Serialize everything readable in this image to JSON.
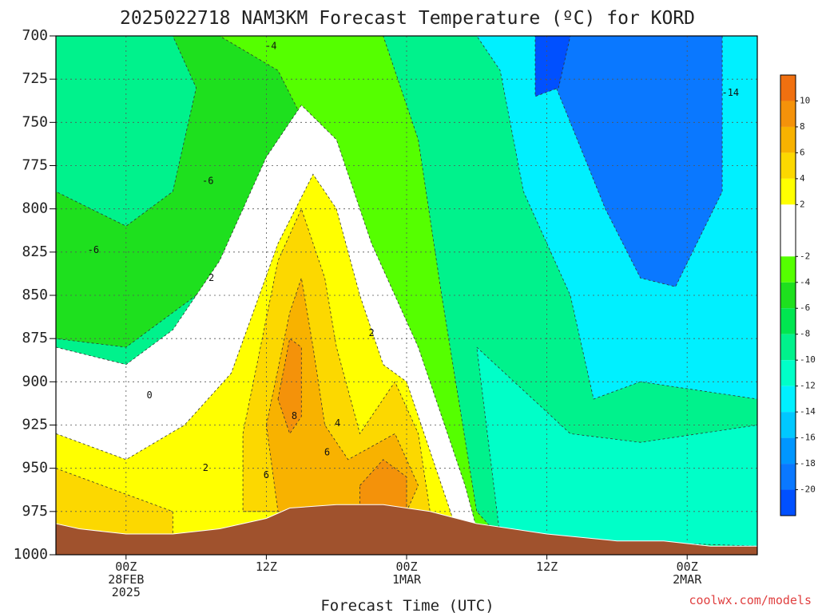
{
  "chart_data": {
    "type": "heatmap",
    "title": "2025022718 NAM3KM Forecast Temperature (ºC) for KORD",
    "xlabel": "Forecast Time (UTC)",
    "ylabel": "",
    "credit": "coolwx.com/models",
    "x_unit": "forecast hour",
    "xlim": [
      0,
      60
    ],
    "y_unit": "hPa",
    "ylim": [
      1000,
      700
    ],
    "y_ticks": [
      700,
      725,
      750,
      775,
      800,
      825,
      850,
      875,
      900,
      925,
      950,
      975,
      1000
    ],
    "x_ticks": [
      {
        "hour": 6,
        "lines": [
          "00Z",
          "28FEB",
          "2025"
        ]
      },
      {
        "hour": 18,
        "lines": [
          "12Z"
        ]
      },
      {
        "hour": 30,
        "lines": [
          "00Z",
          "1MAR"
        ]
      },
      {
        "hour": 42,
        "lines": [
          "12Z"
        ]
      },
      {
        "hour": 54,
        "lines": [
          "00Z",
          "2MAR"
        ]
      }
    ],
    "grid": true,
    "colorbar": {
      "ticks": [
        "10",
        "8",
        "6",
        "4",
        "2",
        "-2",
        "-4",
        "-6",
        "-8",
        "-10",
        "-12",
        "-14",
        "-16",
        "-18",
        "-20"
      ],
      "bins": [
        {
          "lo": 10,
          "hi": 12,
          "color": "#f07010"
        },
        {
          "lo": 8,
          "hi": 10,
          "color": "#f4920a"
        },
        {
          "lo": 6,
          "hi": 8,
          "color": "#f8b200"
        },
        {
          "lo": 4,
          "hi": 6,
          "color": "#fcd800"
        },
        {
          "lo": 2,
          "hi": 4,
          "color": "#ffff00"
        },
        {
          "lo": -2,
          "hi": 2,
          "color": "#ffffff"
        },
        {
          "lo": -4,
          "hi": -2,
          "color": "#55ff00"
        },
        {
          "lo": -6,
          "hi": -4,
          "color": "#1ee01e"
        },
        {
          "lo": -8,
          "hi": -6,
          "color": "#00e650"
        },
        {
          "lo": -10,
          "hi": -8,
          "color": "#00f28c"
        },
        {
          "lo": -12,
          "hi": -10,
          "color": "#00ffc8"
        },
        {
          "lo": -14,
          "hi": -12,
          "color": "#00f0ff"
        },
        {
          "lo": -16,
          "hi": -14,
          "color": "#00c8ff"
        },
        {
          "lo": -18,
          "hi": -16,
          "color": "#0096ff"
        },
        {
          "lo": -20,
          "hi": -18,
          "color": "#0a78ff"
        },
        {
          "lo": -22,
          "hi": -20,
          "color": "#0050ff"
        }
      ]
    },
    "terrain_color": "#a0522d",
    "surface_pressure": [
      {
        "hour": 0,
        "p": 982
      },
      {
        "hour": 2,
        "p": 985
      },
      {
        "hour": 6,
        "p": 988
      },
      {
        "hour": 10,
        "p": 988
      },
      {
        "hour": 14,
        "p": 985
      },
      {
        "hour": 18,
        "p": 979
      },
      {
        "hour": 20,
        "p": 973
      },
      {
        "hour": 24,
        "p": 971
      },
      {
        "hour": 28,
        "p": 971
      },
      {
        "hour": 32,
        "p": 975
      },
      {
        "hour": 36,
        "p": 982
      },
      {
        "hour": 42,
        "p": 988
      },
      {
        "hour": 48,
        "p": 992
      },
      {
        "hour": 52,
        "p": 992
      },
      {
        "hour": 56,
        "p": 995
      },
      {
        "hour": 60,
        "p": 995
      }
    ],
    "regions": [
      {
        "label": "-2 to -6",
        "color": "#1ee01e",
        "poly": [
          [
            0,
            700
          ],
          [
            21,
            700
          ],
          [
            21,
            740
          ],
          [
            18,
            800
          ],
          [
            14,
            840
          ],
          [
            10,
            860
          ],
          [
            6,
            880
          ],
          [
            0,
            875
          ]
        ]
      },
      {
        "label": "-2 to -4",
        "color": "#55ff00",
        "poly": [
          [
            14,
            700
          ],
          [
            28,
            700
          ],
          [
            31,
            760
          ],
          [
            33,
            850
          ],
          [
            36,
            975
          ],
          [
            38,
            990
          ],
          [
            30,
            990
          ],
          [
            26,
            860
          ],
          [
            22,
            760
          ],
          [
            19,
            720
          ]
        ]
      },
      {
        "label": "-6 to -10",
        "color": "#00f28c",
        "poly": [
          [
            0,
            700
          ],
          [
            10,
            700
          ],
          [
            12,
            730
          ],
          [
            10,
            790
          ],
          [
            6,
            810
          ],
          [
            3,
            800
          ],
          [
            0,
            790
          ]
        ]
      },
      {
        "label": "-12 to -16",
        "color": "#00f0ff",
        "poly": [
          [
            36,
            700
          ],
          [
            60,
            700
          ],
          [
            60,
            910
          ],
          [
            50,
            900
          ],
          [
            46,
            910
          ],
          [
            44,
            850
          ],
          [
            40,
            790
          ],
          [
            38,
            720
          ]
        ]
      },
      {
        "label": "-16 to -20",
        "color": "#0a78ff",
        "poly": [
          [
            41,
            700
          ],
          [
            57,
            700
          ],
          [
            57,
            790
          ],
          [
            53,
            845
          ],
          [
            50,
            840
          ],
          [
            47,
            800
          ],
          [
            44,
            750
          ]
        ]
      },
      {
        "label": "-20 to -22",
        "color": "#0050ff",
        "poly": [
          [
            41,
            700
          ],
          [
            44,
            700
          ],
          [
            43,
            730
          ],
          [
            41,
            735
          ]
        ]
      },
      {
        "label": "-10 to -12",
        "color": "#00ffc8",
        "poly": [
          [
            36,
            880
          ],
          [
            44,
            930
          ],
          [
            50,
            935
          ],
          [
            60,
            925
          ],
          [
            60,
            995
          ],
          [
            38,
            990
          ]
        ]
      },
      {
        "label": "-2 to 2",
        "color": "#ffffff",
        "poly": [
          [
            0,
            880
          ],
          [
            6,
            890
          ],
          [
            10,
            870
          ],
          [
            14,
            830
          ],
          [
            18,
            770
          ],
          [
            21,
            740
          ],
          [
            24,
            760
          ],
          [
            27,
            820
          ],
          [
            31,
            880
          ],
          [
            35,
            960
          ],
          [
            36,
            985
          ],
          [
            0,
            990
          ]
        ]
      },
      {
        "label": "2 to 4",
        "color": "#ffff00",
        "poly": [
          [
            0,
            930
          ],
          [
            6,
            945
          ],
          [
            11,
            925
          ],
          [
            15,
            895
          ],
          [
            19,
            820
          ],
          [
            22,
            780
          ],
          [
            24,
            800
          ],
          [
            26,
            850
          ],
          [
            28,
            890
          ],
          [
            30,
            900
          ],
          [
            32,
            940
          ],
          [
            34,
            980
          ],
          [
            8,
            990
          ],
          [
            0,
            985
          ]
        ]
      },
      {
        "label": "4 to 6",
        "color": "#fcd800",
        "poly": [
          [
            0,
            950
          ],
          [
            6,
            965
          ],
          [
            10,
            975
          ],
          [
            10,
            990
          ],
          [
            0,
            985
          ]
        ]
      },
      {
        "label": "4 to 6 b",
        "color": "#fcd800",
        "poly": [
          [
            16,
            930
          ],
          [
            19,
            830
          ],
          [
            21,
            800
          ],
          [
            23,
            840
          ],
          [
            24,
            880
          ],
          [
            26,
            930
          ],
          [
            29,
            900
          ],
          [
            31,
            930
          ],
          [
            32,
            975
          ],
          [
            16,
            975
          ]
        ]
      },
      {
        "label": "6 to 8",
        "color": "#f8b200",
        "poly": [
          [
            18,
            925
          ],
          [
            20,
            860
          ],
          [
            21,
            840
          ],
          [
            22,
            880
          ],
          [
            23,
            925
          ],
          [
            25,
            945
          ],
          [
            29,
            930
          ],
          [
            31,
            960
          ],
          [
            30,
            975
          ],
          [
            19,
            975
          ]
        ]
      },
      {
        "label": "8 to 10",
        "color": "#f4920a",
        "poly": [
          [
            19,
            910
          ],
          [
            20,
            875
          ],
          [
            21,
            880
          ],
          [
            21,
            920
          ],
          [
            20,
            930
          ]
        ]
      },
      {
        "label": "8 to 10 b",
        "color": "#f4920a",
        "poly": [
          [
            26,
            960
          ],
          [
            28,
            945
          ],
          [
            30,
            955
          ],
          [
            30,
            975
          ],
          [
            26,
            975
          ]
        ]
      }
    ],
    "contour_labels": [
      {
        "text": "-4",
        "hour": 18.4,
        "p": 706
      },
      {
        "text": "-6",
        "hour": 13,
        "p": 784
      },
      {
        "text": "-6",
        "hour": 3.2,
        "p": 824
      },
      {
        "text": "-14",
        "hour": 57.7,
        "p": 733
      },
      {
        "text": "2",
        "hour": 13.3,
        "p": 840
      },
      {
        "text": "0",
        "hour": 8,
        "p": 908
      },
      {
        "text": "2",
        "hour": 27,
        "p": 872
      },
      {
        "text": "8",
        "hour": 20.4,
        "p": 920
      },
      {
        "text": "4",
        "hour": 24.1,
        "p": 924
      },
      {
        "text": "6",
        "hour": 23.2,
        "p": 941
      },
      {
        "text": "2",
        "hour": 12.8,
        "p": 950
      },
      {
        "text": "6",
        "hour": 18,
        "p": 954
      }
    ]
  }
}
